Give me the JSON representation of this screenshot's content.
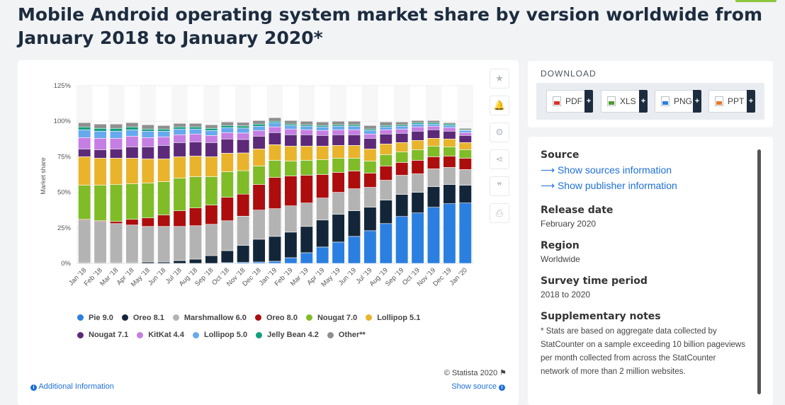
{
  "page_title": "Mobile Android operating system market share by version worldwide from January 2018 to January 2020*",
  "colors": {
    "accent": "#8cc63e",
    "link": "#1e6fd9"
  },
  "side_icons": [
    {
      "name": "star-icon",
      "glyph": "★"
    },
    {
      "name": "bell-icon",
      "glyph": "🔔"
    },
    {
      "name": "gear-icon",
      "glyph": "⚙"
    },
    {
      "name": "share-icon",
      "glyph": "⋖"
    },
    {
      "name": "quote-icon",
      "glyph": "❞"
    },
    {
      "name": "print-icon",
      "glyph": "⎙"
    }
  ],
  "chart_data": {
    "type": "bar",
    "stacked": true,
    "ylabel": "Market share",
    "ylim": [
      0,
      125
    ],
    "yticks": [
      "0%",
      "25%",
      "50%",
      "75%",
      "100%",
      "125%"
    ],
    "grid": true,
    "legend_position": "bottom",
    "categories": [
      "Jan '18",
      "Feb '18",
      "Mar '18",
      "Apr '18",
      "May '18",
      "Jun '18",
      "Jul '18",
      "Aug '18",
      "Sep '18",
      "Oct '18",
      "Nov '18",
      "Dec '18",
      "Jan '19",
      "Feb '19",
      "Mar '19",
      "Apr '19",
      "May '19",
      "Jun '19",
      "Jul '19",
      "Aug '19",
      "Sep '19",
      "Oct '19",
      "Nov '19",
      "Dec '19",
      "Jan '20"
    ],
    "series": [
      {
        "name": "Pie 9.0",
        "color": "#2b7fe0",
        "values": [
          0,
          0,
          0,
          0,
          0,
          0,
          0,
          0,
          0,
          0.5,
          0.7,
          1,
          1.5,
          4,
          7.5,
          11.5,
          15,
          19,
          23,
          28,
          33,
          35.5,
          39.5,
          42,
          42.5
        ]
      },
      {
        "name": "Oreo 8.1",
        "color": "#132639",
        "values": [
          0.5,
          0.5,
          0.5,
          0.5,
          1,
          1,
          2,
          3,
          5.5,
          8.5,
          12,
          16,
          17.5,
          18,
          18.5,
          19,
          19.5,
          18,
          16.5,
          16.5,
          15.5,
          14.5,
          14.5,
          13.5,
          12.5
        ]
      },
      {
        "name": "Marshmallow 6.0",
        "color": "#b3b3b3",
        "values": [
          30,
          29,
          27.5,
          26.5,
          25,
          25,
          24,
          23.5,
          22,
          21,
          20.5,
          20.5,
          19.5,
          18.5,
          16.5,
          15.5,
          15.5,
          15.5,
          14,
          14,
          13.5,
          13,
          12.5,
          12,
          11
        ]
      },
      {
        "name": "Oreo 8.0",
        "color": "#ad0d0d",
        "values": [
          0.5,
          0.5,
          1.5,
          4,
          6,
          8,
          11,
          12.5,
          13.5,
          16.5,
          15.5,
          18,
          22,
          21,
          19.5,
          16.5,
          14,
          12.5,
          10,
          10,
          9,
          9.5,
          8.5,
          8,
          8
        ]
      },
      {
        "name": "Nougat 7.0",
        "color": "#7fbc28",
        "values": [
          24,
          25,
          26,
          25,
          24.5,
          23.5,
          23,
          22,
          20,
          18,
          16.5,
          13,
          12,
          10.5,
          10.5,
          10.5,
          10,
          9,
          8.5,
          8,
          7.5,
          7.5,
          7.5,
          6.5,
          6
        ]
      },
      {
        "name": "Lollipop 5.1",
        "color": "#e9b32c",
        "values": [
          20,
          19,
          18.5,
          18,
          17,
          16,
          15,
          14.5,
          14,
          13,
          12.5,
          12,
          11,
          10.5,
          10,
          9.5,
          9,
          9,
          8.5,
          7.5,
          6.5,
          6.5,
          5.5,
          5.5,
          5
        ]
      },
      {
        "name": "Nougat 7.1",
        "color": "#5d2a7a",
        "values": [
          5.5,
          6,
          6.5,
          8,
          8.5,
          9.5,
          10,
          10,
          10,
          10,
          9.5,
          9,
          8.5,
          8,
          8,
          7.5,
          7.5,
          7.5,
          7.5,
          7,
          6.5,
          6.5,
          6,
          5.5,
          5
        ]
      },
      {
        "name": "KitKat 4.4",
        "color": "#c57ee3",
        "values": [
          8,
          8,
          7.5,
          7.5,
          6.5,
          6,
          5.5,
          5.5,
          5,
          4.5,
          4.5,
          4,
          4,
          4,
          3.5,
          3.5,
          3.5,
          3.5,
          3,
          3,
          3,
          3,
          2.5,
          2.5,
          2
        ]
      },
      {
        "name": "Lollipop 5.0",
        "color": "#67a9ed",
        "values": [
          5.5,
          5,
          5,
          4.5,
          4.5,
          4,
          4,
          3.5,
          3.5,
          3.5,
          3.5,
          3,
          3,
          2.5,
          2.5,
          2.5,
          2.5,
          2.5,
          2.5,
          2,
          2,
          2,
          1.5,
          1.5,
          1.5
        ]
      },
      {
        "name": "Jelly Bean 4.2",
        "color": "#139e7c",
        "values": [
          2,
          2,
          2,
          2,
          1.5,
          1.5,
          1.5,
          1.5,
          1.5,
          1.5,
          1.5,
          1.5,
          1,
          1,
          1,
          1,
          1,
          1,
          1,
          1,
          1,
          1,
          1,
          1,
          0.5
        ]
      },
      {
        "name": "Other**",
        "color": "#8f8f8f",
        "values": [
          3,
          3,
          3,
          3,
          3,
          2.5,
          2.5,
          2.5,
          2.5,
          2.5,
          2.5,
          2.5,
          2.5,
          2.5,
          2.5,
          2.5,
          2.5,
          2.5,
          2.5,
          2.5,
          2,
          1.5,
          1.5,
          1,
          1
        ]
      }
    ]
  },
  "chart_footer": {
    "credit": "© Statista 2020",
    "additional_info": "Additional Information",
    "show_source": "Show source"
  },
  "download": {
    "title": "DOWNLOAD",
    "buttons": [
      {
        "label": "PDF",
        "color": "#d9342b"
      },
      {
        "label": "XLS",
        "color": "#4e9a2a"
      },
      {
        "label": "PNG",
        "color": "#2b7fe0"
      },
      {
        "label": "PPT",
        "color": "#e6792a"
      }
    ]
  },
  "source_panel": {
    "source_heading": "Source",
    "show_sources": "Show sources information",
    "show_publisher": "Show publisher information",
    "release_heading": "Release date",
    "release_value": "February 2020",
    "region_heading": "Region",
    "region_value": "Worldwide",
    "survey_heading": "Survey time period",
    "survey_value": "2018 to 2020",
    "notes_heading": "Supplementary notes",
    "notes_text": "* Stats are based on aggregate data collected by StatCounter on a sample exceeding 10 billion pageviews per month collected from across the StatCounter network of more than 2 million websites."
  }
}
